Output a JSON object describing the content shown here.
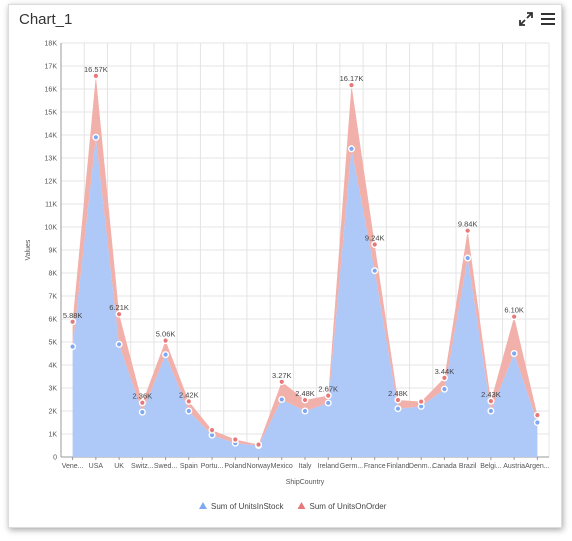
{
  "widget": {
    "title": "Chart_1",
    "expand_icon": "expand-icon",
    "menu_icon": "hamburger-menu-icon"
  },
  "chart_data": {
    "type": "area",
    "stacked": true,
    "xlabel": "ShipCountry",
    "ylabel": "Values",
    "ylim": [
      0,
      18000
    ],
    "ytick_step": 1000,
    "y_ticks": [
      "0",
      "1K",
      "2K",
      "3K",
      "4K",
      "5K",
      "6K",
      "7K",
      "8K",
      "9K",
      "10K",
      "11K",
      "12K",
      "13K",
      "14K",
      "15K",
      "16K",
      "17K",
      "18K"
    ],
    "grid": true,
    "legend_position": "bottom",
    "categories": [
      "Vene...",
      "USA",
      "UK",
      "Switz...",
      "Swed...",
      "Spain",
      "Portu...",
      "Poland",
      "Norway",
      "Mexico",
      "Italy",
      "Ireland",
      "Germ...",
      "France",
      "Finland",
      "Denm...",
      "Canada",
      "Brazil",
      "Belgi...",
      "Austria",
      "Argen..."
    ],
    "series": [
      {
        "name": "Sum of UnitsInStock",
        "color": "#aec8f7",
        "marker_color": "#7fa8f2",
        "values": [
          4800,
          13900,
          4900,
          1950,
          4450,
          2000,
          950,
          600,
          500,
          2500,
          2000,
          2350,
          13400,
          8100,
          2100,
          2200,
          2950,
          8650,
          2000,
          4500,
          1500
        ]
      },
      {
        "name": "Sum of UnitsOnOrder",
        "color": "#f2b0ab",
        "marker_color": "#e8797a",
        "values": [
          1080,
          2670,
          1310,
          410,
          610,
          420,
          220,
          160,
          40,
          770,
          480,
          320,
          2770,
          1140,
          380,
          210,
          490,
          1190,
          430,
          1600,
          320
        ]
      }
    ],
    "data_labels": [
      "5.88K",
      "16.57K",
      "6.21K",
      "2.36K",
      "5.06K",
      "2.42K",
      "",
      "",
      "",
      "3.27K",
      "2.48K",
      "2.67K",
      "16.17K",
      "9.24K",
      "2.48K",
      "",
      "3.44K",
      "9.84K",
      "2.43K",
      "6.10K",
      ""
    ]
  }
}
